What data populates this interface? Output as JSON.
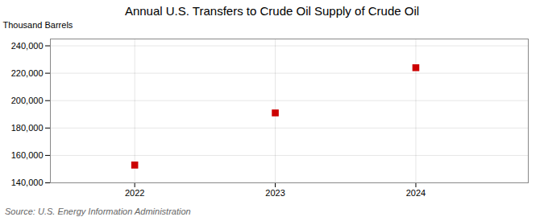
{
  "chart_data": {
    "type": "scatter",
    "title": "Annual U.S. Transfers to Crude Oil Supply of Crude Oil",
    "ylabel": "Thousand Barrels",
    "source": "Source: U.S. Energy Information Administration",
    "x": [
      2022,
      2023,
      2024
    ],
    "values": [
      153000,
      191000,
      224000
    ],
    "color": "#cc0000",
    "marker": "square",
    "xlim": [
      2021.4,
      2024.8
    ],
    "xticks": [
      2022,
      2023,
      2024
    ],
    "ylim": [
      140000,
      245000
    ],
    "yticks": [
      {
        "value": 140000,
        "label": "140,000"
      },
      {
        "value": 160000,
        "label": "160,000"
      },
      {
        "value": 180000,
        "label": "180,000"
      },
      {
        "value": 200000,
        "label": "200,000"
      },
      {
        "value": 220000,
        "label": "220,000"
      },
      {
        "value": 240000,
        "label": "240,000"
      }
    ],
    "grid": true
  }
}
